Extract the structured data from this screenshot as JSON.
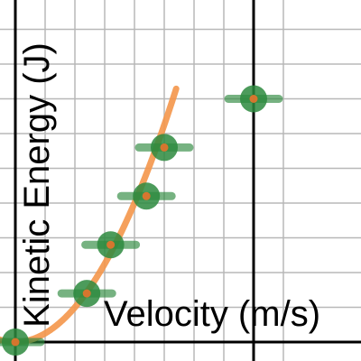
{
  "chart_data": {
    "type": "scatter",
    "xlabel": "Velocity (m/s)",
    "ylabel": "Kinetic Energy (J)",
    "xlim": [
      -0.5,
      4.6
    ],
    "ylim": [
      -0.15,
      5.4
    ],
    "grid": true,
    "series": [
      {
        "kind": "points",
        "values": [
          {
            "x": 0.0,
            "y": 0.0
          },
          {
            "x": 1.2,
            "y": 0.7
          },
          {
            "x": 1.6,
            "y": 1.4
          },
          {
            "x": 2.2,
            "y": 2.1
          },
          {
            "x": 2.5,
            "y": 2.8
          },
          {
            "x": 4.0,
            "y": 3.5
          }
        ]
      },
      {
        "kind": "curve",
        "equation": "y = 0.5 * x^2",
        "coef": 0.5
      }
    ]
  },
  "colors": {
    "grid": "#b8b8b8",
    "axis": "#000000",
    "point": "#2d8a3e",
    "error_bar": "#2d8a3e",
    "point_center": "#e8732c",
    "curve": "#f4964a"
  }
}
